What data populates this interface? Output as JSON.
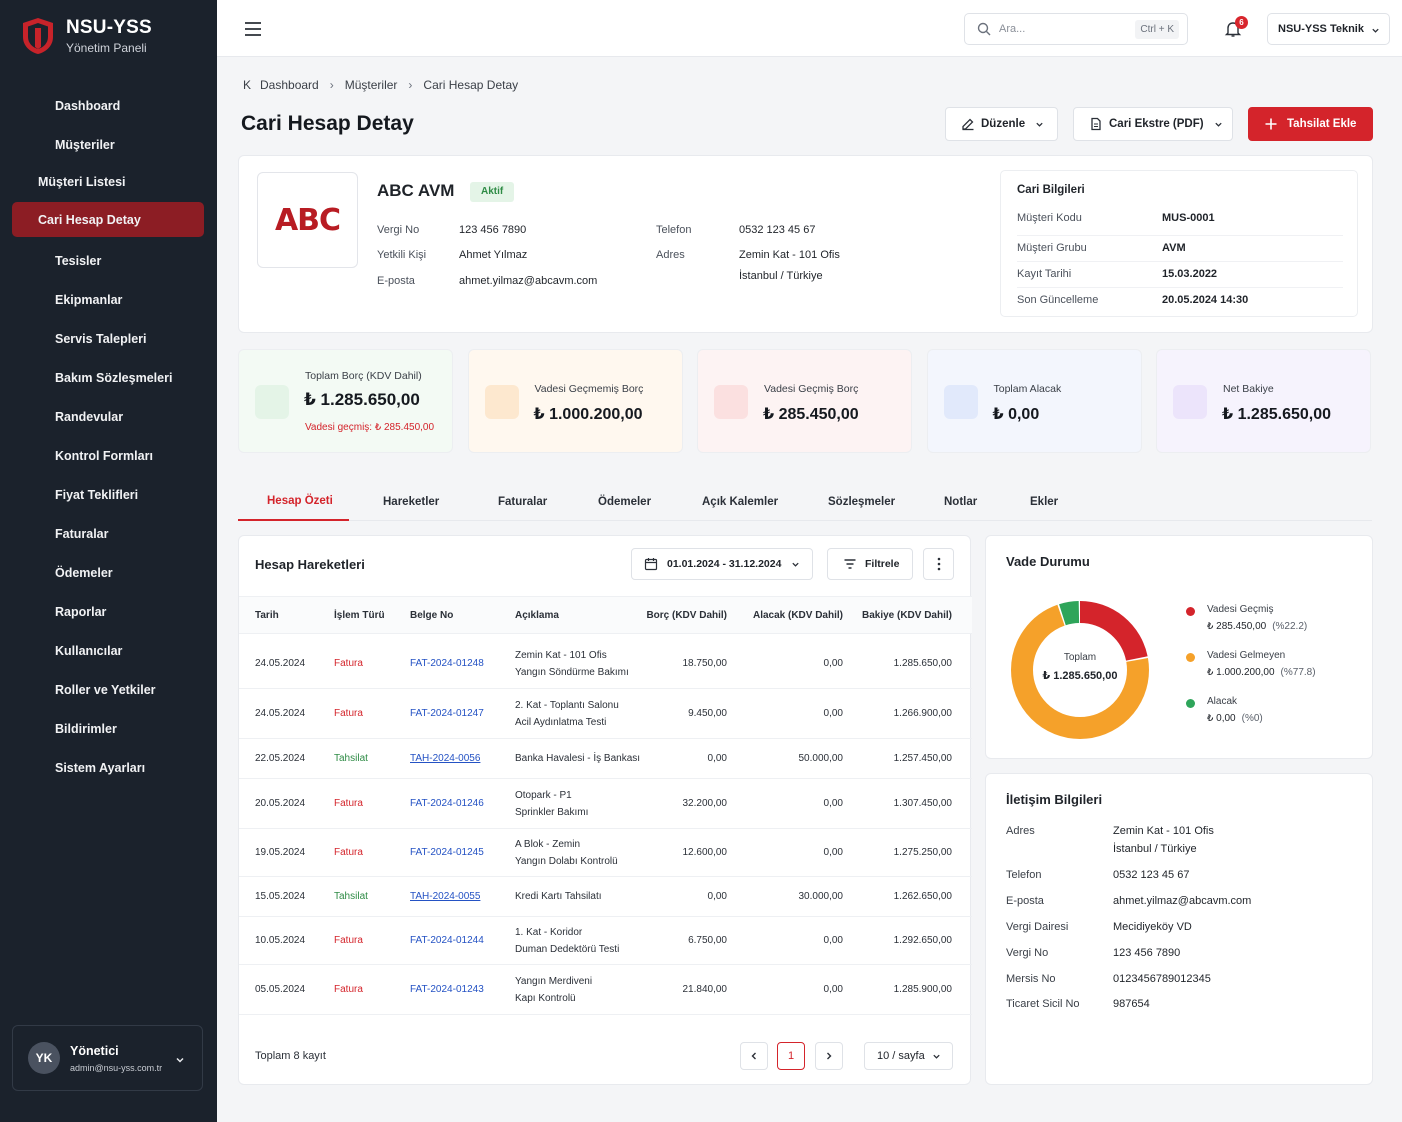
{
  "brand": {
    "title": "NSU-YSS",
    "subtitle": "Yönetim Paneli"
  },
  "sidebar": {
    "items": [
      {
        "label": "Dashboard",
        "icon": "home-icon"
      },
      {
        "label": "Müşteriler",
        "icon": "users-icon"
      },
      {
        "label": "Tesisler",
        "icon": "building-icon"
      },
      {
        "label": "Ekipmanlar",
        "icon": "box-icon"
      },
      {
        "label": "Servis Talepleri",
        "icon": "wrench-icon"
      },
      {
        "label": "Bakım Sözleşmeleri",
        "icon": "contract-icon"
      },
      {
        "label": "Randevular",
        "icon": "calendar-icon"
      },
      {
        "label": "Kontrol Formları",
        "icon": "clipboard-icon"
      },
      {
        "label": "Fiyat Teklifleri",
        "icon": "quote-icon"
      },
      {
        "label": "Faturalar",
        "icon": "invoice-icon"
      },
      {
        "label": "Ödemeler",
        "icon": "wallet-icon"
      },
      {
        "label": "Raporlar",
        "icon": "report-icon"
      },
      {
        "label": "Kullanıcılar",
        "icon": "user-group-icon"
      },
      {
        "label": "Roller ve Yetkiler",
        "icon": "shield-user-icon"
      },
      {
        "label": "Bildirimler",
        "icon": "bell-icon"
      },
      {
        "label": "Sistem Ayarları",
        "icon": "gear-icon"
      }
    ],
    "sub_items": [
      "Müşteri Listesi",
      "Cari Hesap Detay"
    ],
    "user": {
      "initials": "YK",
      "name": "Yönetici",
      "email": "admin@nsu-yss.com.tr"
    }
  },
  "topbar": {
    "search_placeholder": "Ara...",
    "search_shortcut": "Ctrl + K",
    "notification_count": "6",
    "profile": "NSU-YSS Teknik"
  },
  "breadcrumb": {
    "back": "K",
    "items": [
      "Dashboard",
      "Müşteriler",
      "Cari Hesap Detay"
    ]
  },
  "page": {
    "title": "Cari Hesap Detay"
  },
  "actions": {
    "edit": "Düzenle",
    "statement": "Cari Ekstre (PDF)",
    "add_collection": "Tahsilat Ekle"
  },
  "customer": {
    "logo_text": "ABC",
    "name": "ABC AVM",
    "status": "Aktif",
    "fields": {
      "tax_no_label": "Vergi No",
      "tax_no": "123 456 7890",
      "contact_label": "Yetkili Kişi",
      "contact": "Ahmet Yılmaz",
      "email_label": "E-posta",
      "email": "ahmet.yilmaz@abcavm.com",
      "phone_label": "Telefon",
      "phone": "0532 123 45 67",
      "address_label": "Adres",
      "address_line1": "Zemin Kat - 101 Ofis",
      "address_line2": "İstanbul / Türkiye"
    }
  },
  "cari_info": {
    "title": "Cari Bilgileri",
    "rows": [
      {
        "label": "Müşteri Kodu",
        "value": "MUS-0001"
      },
      {
        "label": "Müşteri Grubu",
        "value": "AVM"
      },
      {
        "label": "Kayıt Tarihi",
        "value": "15.03.2022"
      },
      {
        "label": "Son Güncelleme",
        "value": "20.05.2024 14:30"
      }
    ]
  },
  "stats": [
    {
      "label": "Toplam Borç (KDV Dahil)",
      "value": "₺ 1.285.650,00",
      "note": "Vadesi geçmiş: ₺ 285.450,00",
      "color": "#2e9b4e"
    },
    {
      "label": "Vadesi Geçmemiş Borç",
      "value": "₺ 1.000.200,00",
      "color": "#f29a2e"
    },
    {
      "label": "Vadesi Geçmiş Borç",
      "value": "₺ 285.450,00",
      "color": "#d4242b"
    },
    {
      "label": "Toplam Alacak",
      "value": "₺ 0,00",
      "color": "#3b6fd4"
    },
    {
      "label": "Net Bakiye",
      "value": "₺ 1.285.650,00",
      "color": "#7a4fd1"
    }
  ],
  "tabs": [
    "Hesap Özeti",
    "Hareketler",
    "Faturalar",
    "Ödemeler",
    "Açık Kalemler",
    "Sözleşmeler",
    "Notlar",
    "Ekler"
  ],
  "movements": {
    "title": "Hesap Hareketleri",
    "date_range": "01.01.2024 - 31.12.2024",
    "filter": "Filtrele",
    "columns": [
      "Tarih",
      "İşlem Türü",
      "Belge No",
      "Açıklama",
      "Borç (KDV Dahil)",
      "Alacak (KDV Dahil)",
      "Bakiye (KDV Dahil)"
    ],
    "rows": [
      {
        "date": "24.05.2024",
        "type": "Fatura",
        "doc": "FAT-2024-01248",
        "desc1": "Zemin Kat - 101 Ofis",
        "desc2": "Yangın Söndürme Bakımı",
        "debit": "18.750,00",
        "credit": "0,00",
        "balance": "1.285.650,00"
      },
      {
        "date": "24.05.2024",
        "type": "Fatura",
        "doc": "FAT-2024-01247",
        "desc1": "2. Kat - Toplantı Salonu",
        "desc2": "Acil Aydınlatma Testi",
        "debit": "9.450,00",
        "credit": "0,00",
        "balance": "1.266.900,00"
      },
      {
        "date": "22.05.2024",
        "type": "Tahsilat",
        "doc": "TAH-2024-0056",
        "desc1": "Banka Havalesi - İş Bankası",
        "desc2": "",
        "debit": "0,00",
        "credit": "50.000,00",
        "balance": "1.257.450,00"
      },
      {
        "date": "20.05.2024",
        "type": "Fatura",
        "doc": "FAT-2024-01246",
        "desc1": "Otopark - P1",
        "desc2": "Sprinkler Bakımı",
        "debit": "32.200,00",
        "credit": "0,00",
        "balance": "1.307.450,00"
      },
      {
        "date": "19.05.2024",
        "type": "Fatura",
        "doc": "FAT-2024-01245",
        "desc1": "A Blok - Zemin",
        "desc2": "Yangın Dolabı Kontrolü",
        "debit": "12.600,00",
        "credit": "0,00",
        "balance": "1.275.250,00"
      },
      {
        "date": "15.05.2024",
        "type": "Tahsilat",
        "doc": "TAH-2024-0055",
        "desc1": "Kredi Kartı Tahsilatı",
        "desc2": "",
        "debit": "0,00",
        "credit": "30.000,00",
        "balance": "1.262.650,00"
      },
      {
        "date": "10.05.2024",
        "type": "Fatura",
        "doc": "FAT-2024-01244",
        "desc1": "1. Kat - Koridor",
        "desc2": "Duman Dedektörü Testi",
        "debit": "6.750,00",
        "credit": "0,00",
        "balance": "1.292.650,00"
      },
      {
        "date": "05.05.2024",
        "type": "Fatura",
        "doc": "FAT-2024-01243",
        "desc1": "Yangın Merdiveni",
        "desc2": "Kapı Kontrolü",
        "debit": "21.840,00",
        "credit": "0,00",
        "balance": "1.285.900,00"
      }
    ],
    "total": "Toplam 8 kayıt",
    "page": "1",
    "page_size": "10 / sayfa"
  },
  "vade": {
    "title": "Vade Durumu",
    "center_label": "Toplam",
    "center_value": "₺ 1.285.650,00",
    "items": [
      {
        "name": "Vadesi Geçmiş",
        "value": "₺ 285.450,00",
        "pct": "(%22.2)",
        "color": "#d4242b"
      },
      {
        "name": "Vadesi Gelmeyen",
        "value": "₺ 1.000.200,00",
        "pct": "(%77.8)",
        "color": "#f5a12a"
      },
      {
        "name": "Alacak",
        "value": "₺ 0,00",
        "pct": "(%0)",
        "color": "#2ea55a"
      }
    ]
  },
  "contact": {
    "title": "İletişim Bilgileri",
    "rows": [
      {
        "label": "Adres",
        "value": "Zemin Kat - 101 Ofis",
        "value2": "İstanbul / Türkiye"
      },
      {
        "label": "Telefon",
        "value": "0532 123 45 67"
      },
      {
        "label": "E-posta",
        "value": "ahmet.yilmaz@abcavm.com"
      },
      {
        "label": "Vergi Dairesi",
        "value": "Mecidiyeköy VD"
      },
      {
        "label": "Vergi No",
        "value": "123 456 7890"
      },
      {
        "label": "Mersis No",
        "value": "0123456789012345"
      },
      {
        "label": "Ticaret Sicil No",
        "value": "987654"
      }
    ]
  }
}
